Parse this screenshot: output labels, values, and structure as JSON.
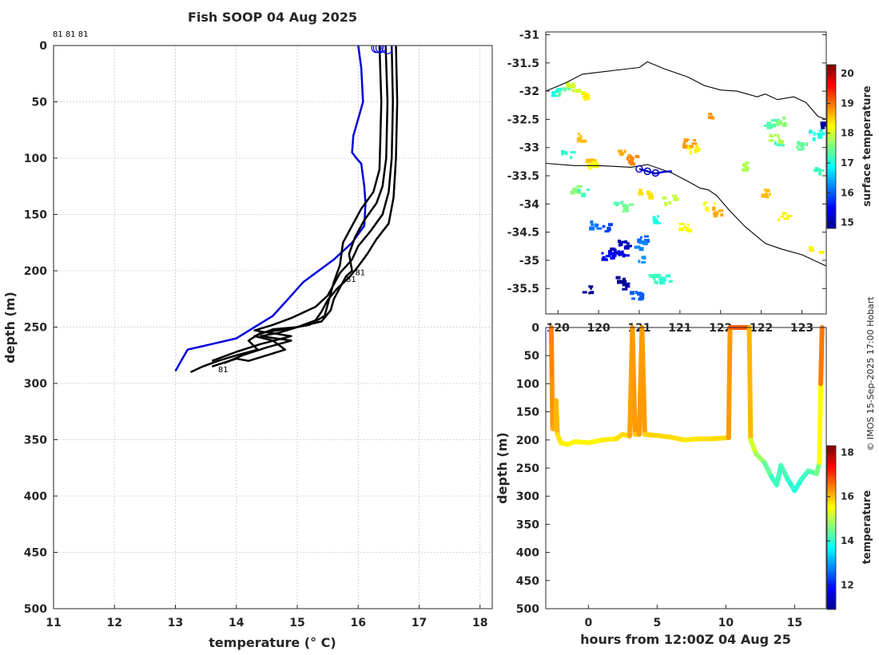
{
  "chart_data": [
    {
      "type": "line",
      "title": "Fish SOOP 04 Aug 2025",
      "xlabel": "temperature (° C)",
      "ylabel": "depth (m)",
      "xlim": [
        11,
        18.2
      ],
      "ylim": [
        500,
        0
      ],
      "xticks": [
        11,
        12,
        13,
        14,
        15,
        16,
        17,
        18
      ],
      "yticks": [
        0,
        50,
        100,
        150,
        200,
        250,
        300,
        350,
        400,
        450,
        500
      ],
      "top_label": "81 81 81",
      "profile_labels": [
        {
          "text": "81",
          "t": 15.95,
          "d": 204
        },
        {
          "text": "81",
          "t": 15.8,
          "d": 210
        },
        {
          "text": "81",
          "t": 13.7,
          "d": 290
        }
      ],
      "series": [
        {
          "name": "reference profile",
          "color": "#0000dd",
          "t": [
            16.0,
            16.05,
            16.08,
            16.0,
            15.92,
            15.9,
            15.97,
            16.05,
            16.1,
            16.12,
            16.1,
            15.9,
            15.6,
            15.35,
            15.1,
            14.85,
            14.6,
            14.3,
            14.0,
            13.6,
            13.2,
            13.0
          ],
          "d": [
            0,
            20,
            50,
            65,
            80,
            95,
            100,
            105,
            125,
            140,
            160,
            175,
            190,
            200,
            210,
            225,
            240,
            250,
            260,
            265,
            270,
            289
          ]
        },
        {
          "name": "profile 1",
          "color": "#000000",
          "t": [
            16.35,
            16.38,
            16.36,
            16.35,
            16.25,
            16.05,
            15.9,
            15.75,
            15.7,
            15.6,
            15.55,
            15.5,
            15.45,
            15.2,
            14.8,
            14.4,
            14.2,
            14.35,
            14.0,
            13.7,
            13.45,
            13.25
          ],
          "d": [
            0,
            50,
            90,
            110,
            130,
            145,
            160,
            175,
            195,
            210,
            220,
            230,
            240,
            248,
            252,
            255,
            262,
            270,
            275,
            280,
            285,
            290
          ]
        },
        {
          "name": "profile 2",
          "color": "#000000",
          "t": [
            16.45,
            16.48,
            16.46,
            16.4,
            16.3,
            16.1,
            15.95,
            15.85,
            15.9,
            15.8,
            15.7,
            15.6,
            15.55,
            15.4,
            15.0,
            14.6,
            14.3,
            14.6,
            14.8,
            14.5,
            14.2,
            14.0,
            13.6
          ],
          "d": [
            0,
            50,
            100,
            125,
            140,
            155,
            170,
            185,
            200,
            205,
            215,
            225,
            235,
            245,
            250,
            252,
            258,
            262,
            270,
            275,
            280,
            278,
            285
          ]
        },
        {
          "name": "profile 3",
          "color": "#000000",
          "t": [
            16.55,
            16.57,
            16.55,
            16.5,
            16.4,
            16.2,
            16.0,
            15.9,
            15.7,
            15.6,
            15.5,
            15.3,
            14.9,
            14.6,
            14.3,
            14.9,
            14.4,
            14.0,
            13.6
          ],
          "d": [
            0,
            50,
            100,
            130,
            150,
            165,
            178,
            190,
            202,
            212,
            222,
            232,
            242,
            248,
            253,
            258,
            265,
            272,
            280
          ]
        },
        {
          "name": "profile 4",
          "color": "#000000",
          "t": [
            16.62,
            16.64,
            16.62,
            16.58,
            16.5,
            16.3,
            16.15,
            16.0,
            15.85,
            15.65,
            15.5,
            15.4,
            15.3,
            15.0,
            14.7,
            14.4,
            14.9,
            14.5,
            14.1,
            13.8
          ],
          "d": [
            0,
            50,
            100,
            135,
            158,
            172,
            185,
            196,
            206,
            216,
            226,
            236,
            244,
            250,
            255,
            258,
            262,
            268,
            275,
            282
          ]
        }
      ],
      "start_markers": [
        {
          "t": 16.3,
          "d": 2
        },
        {
          "t": 16.33,
          "d": 2
        },
        {
          "t": 16.37,
          "d": 2
        },
        {
          "t": 16.48,
          "d": 3
        }
      ]
    },
    {
      "type": "heatmap",
      "subtype": "map",
      "xticks": [
        120,
        120.5,
        121,
        121.5,
        122,
        122.5,
        123
      ],
      "xtick_labels": [
        "120",
        "120",
        "121",
        "121",
        "122",
        "122",
        "123"
      ],
      "xlim": [
        119.85,
        123.3
      ],
      "yticks": [
        -31,
        -31.5,
        -32,
        -32.5,
        -33,
        -33.5,
        -34,
        -34.5,
        -35,
        -35.5
      ],
      "ylim": [
        -35.95,
        -30.95
      ],
      "colorbar_label": "surface temperature",
      "colorbar_range": [
        14.8,
        20.3
      ],
      "colorbar_ticks": [
        15,
        16,
        17,
        18,
        19,
        20
      ],
      "coastline_upper": [
        [
          119.85,
          -32.0
        ],
        [
          120.1,
          -31.85
        ],
        [
          120.3,
          -31.7
        ],
        [
          120.7,
          -31.63
        ],
        [
          121.0,
          -31.58
        ],
        [
          121.1,
          -31.48
        ],
        [
          121.3,
          -31.6
        ],
        [
          121.6,
          -31.75
        ],
        [
          121.8,
          -31.9
        ],
        [
          122.0,
          -31.98
        ],
        [
          122.2,
          -32.0
        ],
        [
          122.45,
          -32.1
        ],
        [
          122.55,
          -32.05
        ],
        [
          122.7,
          -32.15
        ],
        [
          122.9,
          -32.1
        ],
        [
          123.05,
          -32.2
        ],
        [
          123.2,
          -32.45
        ],
        [
          123.3,
          -32.5
        ]
      ],
      "coastline_lower": [
        [
          119.85,
          -33.28
        ],
        [
          120.2,
          -33.32
        ],
        [
          120.5,
          -33.32
        ],
        [
          120.9,
          -33.35
        ],
        [
          121.1,
          -33.3
        ],
        [
          121.4,
          -33.45
        ],
        [
          121.6,
          -33.6
        ],
        [
          121.75,
          -33.72
        ],
        [
          121.85,
          -33.75
        ],
        [
          121.95,
          -33.85
        ],
        [
          122.1,
          -34.1
        ],
        [
          122.3,
          -34.4
        ],
        [
          122.55,
          -34.7
        ],
        [
          122.75,
          -34.8
        ],
        [
          123.0,
          -34.9
        ],
        [
          123.3,
          -35.1
        ]
      ],
      "ship_track": [
        [
          121.0,
          -33.38
        ],
        [
          121.1,
          -33.42
        ],
        [
          121.2,
          -33.46
        ],
        [
          121.3,
          -33.43
        ],
        [
          121.4,
          -33.42
        ]
      ],
      "ship_markers": [
        [
          121.0,
          -33.38
        ],
        [
          121.1,
          -33.42
        ],
        [
          121.2,
          -33.45
        ]
      ],
      "sst_patches": [
        {
          "lon": 119.98,
          "lat": -32.0,
          "v": 17.0
        },
        {
          "lon": 120.05,
          "lat": -31.97,
          "v": 17.4
        },
        {
          "lon": 120.15,
          "lat": -31.9,
          "v": 18.0
        },
        {
          "lon": 120.35,
          "lat": -32.05,
          "v": 18.3
        },
        {
          "lon": 120.1,
          "lat": -33.1,
          "v": 17.1
        },
        {
          "lon": 120.3,
          "lat": -32.8,
          "v": 18.6
        },
        {
          "lon": 120.35,
          "lat": -33.2,
          "v": 18.6
        },
        {
          "lon": 120.42,
          "lat": -33.3,
          "v": 18.2
        },
        {
          "lon": 120.8,
          "lat": -33.1,
          "v": 18.7
        },
        {
          "lon": 120.9,
          "lat": -33.2,
          "v": 18.9
        },
        {
          "lon": 120.2,
          "lat": -33.7,
          "v": 17.6
        },
        {
          "lon": 120.3,
          "lat": -33.75,
          "v": 17.2
        },
        {
          "lon": 120.45,
          "lat": -34.35,
          "v": 16.1
        },
        {
          "lon": 120.6,
          "lat": -34.4,
          "v": 15.8
        },
        {
          "lon": 120.65,
          "lat": -34.8,
          "v": 15.2
        },
        {
          "lon": 120.75,
          "lat": -34.85,
          "v": 15.3
        },
        {
          "lon": 120.6,
          "lat": -34.92,
          "v": 15.5
        },
        {
          "lon": 120.8,
          "lat": -34.7,
          "v": 15.1
        },
        {
          "lon": 120.75,
          "lat": -35.3,
          "v": 14.9
        },
        {
          "lon": 120.85,
          "lat": -35.45,
          "v": 15.0
        },
        {
          "lon": 120.95,
          "lat": -35.6,
          "v": 16.0
        },
        {
          "lon": 120.35,
          "lat": -35.5,
          "v": 14.9
        },
        {
          "lon": 120.75,
          "lat": -34.0,
          "v": 17.3
        },
        {
          "lon": 120.8,
          "lat": -34.05,
          "v": 17.5
        },
        {
          "lon": 121.0,
          "lat": -34.6,
          "v": 16.0
        },
        {
          "lon": 121.0,
          "lat": -34.7,
          "v": 16.2
        },
        {
          "lon": 121.05,
          "lat": -34.95,
          "v": 16.3
        },
        {
          "lon": 121.2,
          "lat": -34.25,
          "v": 17.0
        },
        {
          "lon": 121.15,
          "lat": -35.3,
          "v": 17.2
        },
        {
          "lon": 121.3,
          "lat": -35.3,
          "v": 17.1
        },
        {
          "lon": 121.05,
          "lat": -33.8,
          "v": 18.4
        },
        {
          "lon": 121.35,
          "lat": -33.9,
          "v": 17.9
        },
        {
          "lon": 121.55,
          "lat": -34.4,
          "v": 18.2
        },
        {
          "lon": 121.6,
          "lat": -32.9,
          "v": 18.8
        },
        {
          "lon": 121.65,
          "lat": -33.0,
          "v": 18.3
        },
        {
          "lon": 121.85,
          "lat": -34.0,
          "v": 18.2
        },
        {
          "lon": 121.95,
          "lat": -34.1,
          "v": 18.7
        },
        {
          "lon": 121.85,
          "lat": -32.4,
          "v": 18.8
        },
        {
          "lon": 122.6,
          "lat": -32.55,
          "v": 17.3
        },
        {
          "lon": 122.75,
          "lat": -32.5,
          "v": 17.6
        },
        {
          "lon": 122.7,
          "lat": -32.95,
          "v": 17.2
        },
        {
          "lon": 122.65,
          "lat": -32.8,
          "v": 17.8
        },
        {
          "lon": 123.0,
          "lat": -32.95,
          "v": 17.4
        },
        {
          "lon": 123.15,
          "lat": -32.75,
          "v": 17.0
        },
        {
          "lon": 123.2,
          "lat": -33.4,
          "v": 17.2
        },
        {
          "lon": 123.28,
          "lat": -32.55,
          "v": 15.0
        },
        {
          "lon": 122.3,
          "lat": -33.3,
          "v": 17.8
        },
        {
          "lon": 122.75,
          "lat": -34.2,
          "v": 18.3
        },
        {
          "lon": 123.15,
          "lat": -34.8,
          "v": 18.3
        },
        {
          "lon": 122.55,
          "lat": -33.8,
          "v": 18.6
        }
      ]
    },
    {
      "type": "scatter",
      "xlabel": "hours from 12:00Z 04 Aug 25",
      "ylabel": "depth (m)",
      "xlim": [
        -3.1,
        17.3
      ],
      "ylim": [
        500,
        0
      ],
      "xticks": [
        0,
        5,
        10,
        15
      ],
      "yticks": [
        0,
        50,
        100,
        150,
        200,
        250,
        300,
        350,
        400,
        450,
        500
      ],
      "colorbar_label": "temperature",
      "colorbar_range": [
        10.9,
        18.3
      ],
      "colorbar_ticks": [
        12,
        14,
        16,
        18
      ],
      "track": [
        {
          "x": -2.7,
          "d": 0,
          "t": 16.4
        },
        {
          "x": -2.65,
          "d": 90,
          "t": 16.4
        },
        {
          "x": -2.6,
          "d": 180,
          "t": 16.2
        },
        {
          "x": -2.45,
          "d": 180,
          "t": 16.0
        },
        {
          "x": -2.35,
          "d": 130,
          "t": 16.3
        },
        {
          "x": -2.25,
          "d": 190,
          "t": 15.8
        },
        {
          "x": -2.0,
          "d": 205,
          "t": 15.7
        },
        {
          "x": -1.5,
          "d": 208,
          "t": 15.6
        },
        {
          "x": -1.0,
          "d": 203,
          "t": 15.6
        },
        {
          "x": 0.0,
          "d": 205,
          "t": 15.6
        },
        {
          "x": 1.0,
          "d": 200,
          "t": 15.6
        },
        {
          "x": 2.0,
          "d": 198,
          "t": 15.7
        },
        {
          "x": 2.5,
          "d": 190,
          "t": 15.8
        },
        {
          "x": 3.0,
          "d": 193,
          "t": 15.8
        },
        {
          "x": 3.2,
          "d": 0,
          "t": 16.6
        },
        {
          "x": 3.4,
          "d": 190,
          "t": 15.9
        },
        {
          "x": 3.7,
          "d": 190,
          "t": 15.9
        },
        {
          "x": 3.9,
          "d": 0,
          "t": 16.6
        },
        {
          "x": 4.1,
          "d": 190,
          "t": 15.9
        },
        {
          "x": 5.0,
          "d": 192,
          "t": 15.8
        },
        {
          "x": 6.0,
          "d": 195,
          "t": 15.8
        },
        {
          "x": 7.0,
          "d": 200,
          "t": 15.7
        },
        {
          "x": 8.0,
          "d": 198,
          "t": 15.7
        },
        {
          "x": 9.0,
          "d": 198,
          "t": 15.8
        },
        {
          "x": 10.2,
          "d": 196,
          "t": 15.8
        },
        {
          "x": 10.3,
          "d": 0,
          "t": 16.7
        },
        {
          "x": 11.7,
          "d": 0,
          "t": 16.7
        },
        {
          "x": 11.8,
          "d": 200,
          "t": 15.4
        },
        {
          "x": 12.2,
          "d": 225,
          "t": 15.0
        },
        {
          "x": 12.8,
          "d": 240,
          "t": 14.6
        },
        {
          "x": 13.3,
          "d": 265,
          "t": 14.2
        },
        {
          "x": 13.7,
          "d": 280,
          "t": 14.0
        },
        {
          "x": 14.0,
          "d": 245,
          "t": 14.3
        },
        {
          "x": 14.5,
          "d": 270,
          "t": 14.1
        },
        {
          "x": 15.0,
          "d": 290,
          "t": 13.9
        },
        {
          "x": 15.5,
          "d": 270,
          "t": 14.0
        },
        {
          "x": 16.0,
          "d": 255,
          "t": 14.2
        },
        {
          "x": 16.6,
          "d": 260,
          "t": 14.3
        },
        {
          "x": 16.8,
          "d": 240,
          "t": 14.8
        },
        {
          "x": 16.9,
          "d": 100,
          "t": 16.3
        },
        {
          "x": 17.0,
          "d": 0,
          "t": 16.7
        }
      ]
    }
  ],
  "credit": "© IMOS 15-Sep-2025 17:00 Hobart"
}
